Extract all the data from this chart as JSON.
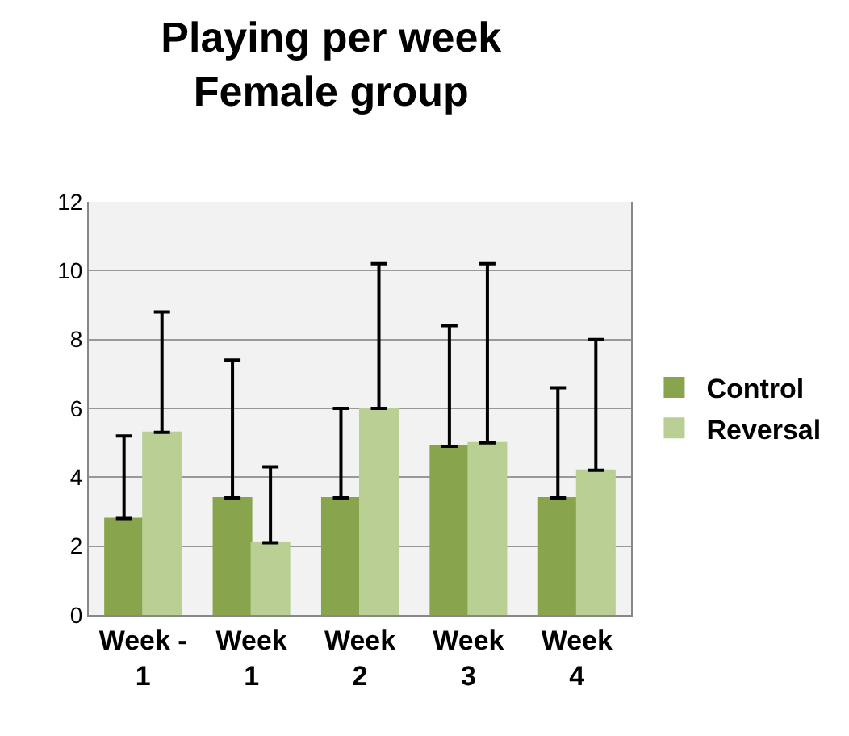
{
  "chart_data": {
    "type": "bar",
    "title": "Playing per week\nFemale group",
    "categories": [
      "Week - 1",
      "Week 1",
      "Week 2",
      "Week 3",
      "Week 4"
    ],
    "series": [
      {
        "name": "Control",
        "color": "#88a54e",
        "values": [
          2.8,
          3.4,
          3.4,
          4.9,
          3.4
        ],
        "errors": [
          [
            2.8,
            5.2
          ],
          [
            3.4,
            7.4
          ],
          [
            3.4,
            6.0
          ],
          [
            4.9,
            8.4
          ],
          [
            3.4,
            6.6
          ]
        ]
      },
      {
        "name": "Reversal",
        "color": "#b9cf93",
        "values": [
          5.3,
          2.1,
          6.0,
          5.0,
          4.2
        ],
        "errors": [
          [
            5.3,
            8.8
          ],
          [
            2.1,
            4.3
          ],
          [
            6.0,
            10.2
          ],
          [
            5.0,
            10.2
          ],
          [
            4.2,
            8.0
          ]
        ]
      }
    ],
    "ylim": [
      0,
      12
    ],
    "yticks": [
      0,
      2,
      4,
      6,
      8,
      10,
      12
    ],
    "grid": "y",
    "legend": "right"
  }
}
